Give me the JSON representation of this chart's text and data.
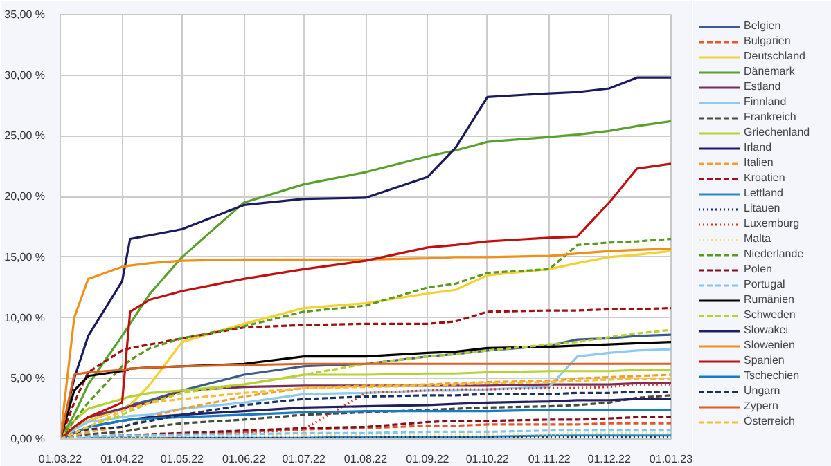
{
  "chart_data": {
    "type": "line",
    "x": [
      "2022-03-01",
      "2022-03-08",
      "2022-03-15",
      "2022-04-01",
      "2022-04-05",
      "2022-04-15",
      "2022-05-01",
      "2022-06-01",
      "2022-07-01",
      "2022-08-01",
      "2022-09-01",
      "2022-09-15",
      "2022-10-01",
      "2022-11-01",
      "2022-11-15",
      "2022-12-01",
      "2022-12-15",
      "2023-01-01"
    ],
    "xlim": [
      "2022-03-01",
      "2023-01-01"
    ],
    "xticks": [
      {
        "value": "2022-03-01",
        "label": "01.03.22"
      },
      {
        "value": "2022-04-01",
        "label": "01.04.22"
      },
      {
        "value": "2022-05-01",
        "label": "01.05.22"
      },
      {
        "value": "2022-06-01",
        "label": "01.06.22"
      },
      {
        "value": "2022-07-01",
        "label": "01.07.22"
      },
      {
        "value": "2022-08-01",
        "label": "01.08.22"
      },
      {
        "value": "2022-09-01",
        "label": "01.09.22"
      },
      {
        "value": "2022-10-01",
        "label": "01.10.22"
      },
      {
        "value": "2022-11-01",
        "label": "01.11.22"
      },
      {
        "value": "2022-12-01",
        "label": "01.12.22"
      },
      {
        "value": "2023-01-01",
        "label": "01.01.23"
      }
    ],
    "ylim": [
      0,
      35
    ],
    "yticks": [
      {
        "value": 0,
        "label": "0,00 %"
      },
      {
        "value": 5,
        "label": "5,00 %"
      },
      {
        "value": 10,
        "label": "10,00 %"
      },
      {
        "value": 15,
        "label": "15,00 %"
      },
      {
        "value": 20,
        "label": "20,00 %"
      },
      {
        "value": 25,
        "label": "25,00 %"
      },
      {
        "value": 30,
        "label": "30,00 %"
      },
      {
        "value": 35,
        "label": "35,00 %"
      }
    ],
    "grid": true,
    "legend": "right",
    "marker": "none",
    "series": [
      {
        "name": "Belgien",
        "color": "#3b5b8c",
        "line_style": "solid",
        "values": [
          0,
          0.8,
          1.5,
          2.5,
          2.8,
          3.2,
          4.0,
          5.3,
          6.0,
          6.2,
          6.8,
          7.0,
          7.3,
          7.7,
          8.2,
          8.3,
          8.5,
          8.6
        ]
      },
      {
        "name": "Bulgarien",
        "color": "#e8562a",
        "line_style": "dashed",
        "values": [
          0,
          0,
          0.1,
          0.2,
          0.2,
          0.3,
          0.4,
          0.6,
          0.8,
          0.9,
          1.1,
          1.1,
          1.2,
          1.2,
          1.2,
          1.3,
          1.3,
          1.3
        ]
      },
      {
        "name": "Deutschland",
        "color": "#f5d033",
        "line_style": "solid",
        "values": [
          0,
          0.8,
          1.5,
          2.5,
          2.8,
          4.5,
          8.0,
          9.5,
          10.8,
          11.2,
          12.0,
          12.3,
          13.5,
          14.0,
          14.5,
          15.0,
          15.2,
          15.5
        ]
      },
      {
        "name": "Dänemark",
        "color": "#5aa02c",
        "line_style": "solid",
        "values": [
          0,
          2.0,
          4.5,
          8.5,
          9.5,
          12.0,
          15.0,
          19.5,
          21.0,
          22.0,
          23.3,
          23.8,
          24.5,
          24.9,
          25.1,
          25.4,
          25.8,
          26.2
        ]
      },
      {
        "name": "Estland",
        "color": "#7b2d5a",
        "line_style": "solid",
        "values": [
          0,
          1.0,
          1.8,
          2.5,
          2.7,
          3.0,
          4.0,
          4.3,
          4.4,
          4.4,
          4.4,
          4.4,
          4.4,
          4.5,
          4.5,
          4.5,
          4.6,
          4.6
        ]
      },
      {
        "name": "Finnland",
        "color": "#8ec9ee",
        "line_style": "solid",
        "values": [
          0,
          0.8,
          1.4,
          1.8,
          1.9,
          2.0,
          2.5,
          3.0,
          3.7,
          3.8,
          4.0,
          4.0,
          4.1,
          4.3,
          6.8,
          7.1,
          7.3,
          7.4
        ]
      },
      {
        "name": "Frankreich",
        "color": "#4a4a3a",
        "line_style": "dashed",
        "values": [
          0,
          0.2,
          0.4,
          0.6,
          0.7,
          1.0,
          1.3,
          1.6,
          2.0,
          2.2,
          2.4,
          2.5,
          2.6,
          2.7,
          2.8,
          3.0,
          3.4,
          3.6
        ]
      },
      {
        "name": "Griechenland",
        "color": "#b5d334",
        "line_style": "solid",
        "values": [
          0,
          1.5,
          2.5,
          3.3,
          3.5,
          3.8,
          4.0,
          4.5,
          5.3,
          5.3,
          5.4,
          5.4,
          5.5,
          5.6,
          5.6,
          5.6,
          5.7,
          5.7
        ]
      },
      {
        "name": "Irland",
        "color": "#1a1a5e",
        "line_style": "solid",
        "values": [
          0,
          5.0,
          8.5,
          13.0,
          16.5,
          16.8,
          17.3,
          19.3,
          19.8,
          19.9,
          21.6,
          24.0,
          28.2,
          28.5,
          28.6,
          28.9,
          29.8,
          29.8
        ]
      },
      {
        "name": "Italien",
        "color": "#f0a030",
        "line_style": "dashed",
        "values": [
          0,
          0.3,
          0.6,
          1.0,
          1.2,
          1.8,
          2.5,
          3.5,
          4.2,
          4.4,
          4.5,
          4.6,
          4.7,
          4.8,
          5.0,
          5.1,
          5.2,
          5.3
        ]
      },
      {
        "name": "Kroatien",
        "color": "#a01010",
        "line_style": "dashed",
        "values": [
          0,
          3.0,
          5.5,
          7.3,
          7.5,
          7.8,
          8.3,
          9.2,
          9.4,
          9.5,
          9.5,
          9.7,
          10.5,
          10.6,
          10.6,
          10.7,
          10.7,
          10.8
        ]
      },
      {
        "name": "Lettland",
        "color": "#2a8ac0",
        "line_style": "solid",
        "values": [
          0,
          0,
          0.1,
          0.1,
          0.1,
          0.1,
          0.1,
          0.1,
          0.1,
          0.2,
          0.2,
          0.2,
          0.2,
          0.3,
          0.3,
          0.3,
          0.3,
          0.3
        ]
      },
      {
        "name": "Litauen",
        "color": "#1a2a6a",
        "line_style": "dotted",
        "values": [
          0,
          0,
          0.1,
          0.1,
          0.1,
          0.1,
          0.1,
          0.1,
          0.1,
          0.1,
          0.2,
          0.2,
          0.2,
          0.2,
          0.2,
          0.2,
          0.2,
          0.2
        ]
      },
      {
        "name": "Luxemburg",
        "color": "#e03020",
        "line_style": "dotted",
        "values": [
          0,
          0,
          0,
          0,
          0,
          0.1,
          0.3,
          0.5,
          0.8,
          3.8,
          4.0,
          4.1,
          4.1,
          4.2,
          4.2,
          4.3,
          4.5,
          4.5
        ]
      },
      {
        "name": "Malta",
        "color": "#f0e070",
        "line_style": "dotted",
        "values": [
          0,
          0.1,
          0.1,
          0.2,
          0.2,
          0.2,
          0.3,
          0.3,
          0.3,
          0.4,
          0.4,
          0.4,
          0.4,
          0.4,
          0.5,
          0.5,
          0.5,
          0.5
        ]
      },
      {
        "name": "Niederlande",
        "color": "#5a9a20",
        "line_style": "dashed",
        "values": [
          0,
          1.5,
          3.0,
          6.0,
          6.5,
          7.5,
          8.3,
          9.3,
          10.5,
          11.0,
          12.5,
          12.8,
          13.7,
          14.0,
          16.0,
          16.2,
          16.3,
          16.5
        ]
      },
      {
        "name": "Polen",
        "color": "#801020",
        "line_style": "dashed",
        "values": [
          0,
          0.1,
          0.2,
          0.3,
          0.3,
          0.4,
          0.5,
          0.7,
          0.9,
          1.0,
          1.4,
          1.5,
          1.5,
          1.6,
          1.6,
          1.7,
          1.8,
          1.8
        ]
      },
      {
        "name": "Portugal",
        "color": "#80c8f0",
        "line_style": "dashed",
        "values": [
          0,
          0.1,
          0.2,
          0.3,
          0.3,
          0.3,
          0.4,
          0.4,
          0.5,
          0.5,
          0.6,
          0.6,
          0.6,
          0.7,
          0.7,
          0.7,
          0.7,
          0.7
        ]
      },
      {
        "name": "Rumänien",
        "color": "#000000",
        "line_style": "solid",
        "values": [
          0,
          4.0,
          5.2,
          5.6,
          5.8,
          5.9,
          6.0,
          6.2,
          6.8,
          6.8,
          7.1,
          7.2,
          7.5,
          7.6,
          7.7,
          7.8,
          7.9,
          8.0
        ]
      },
      {
        "name": "Schweden",
        "color": "#b8d030",
        "line_style": "dashed",
        "values": [
          0,
          0.5,
          1.0,
          2.0,
          2.3,
          3.0,
          3.8,
          4.5,
          5.3,
          6.2,
          6.8,
          7.0,
          7.3,
          7.8,
          8.0,
          8.4,
          8.7,
          9.0
        ]
      },
      {
        "name": "Slowakei",
        "color": "#202060",
        "line_style": "solid",
        "values": [
          0,
          0.5,
          1.0,
          1.5,
          1.6,
          1.8,
          2.0,
          2.3,
          2.6,
          2.7,
          2.8,
          2.9,
          3.0,
          3.1,
          3.2,
          3.2,
          3.3,
          3.3
        ]
      },
      {
        "name": "Slowenien",
        "color": "#f0901a",
        "line_style": "solid",
        "values": [
          0,
          10.0,
          13.2,
          14.2,
          14.3,
          14.5,
          14.7,
          14.8,
          14.8,
          14.8,
          14.9,
          15.0,
          15.0,
          15.1,
          15.3,
          15.5,
          15.6,
          15.7
        ]
      },
      {
        "name": "Spanien",
        "color": "#c01010",
        "line_style": "solid",
        "values": [
          0,
          1.0,
          1.8,
          3.0,
          10.5,
          11.5,
          12.2,
          13.2,
          14.0,
          14.7,
          15.8,
          16.0,
          16.3,
          16.6,
          16.7,
          19.5,
          22.3,
          22.7
        ]
      },
      {
        "name": "Tschechien",
        "color": "#1a7ac0",
        "line_style": "solid",
        "values": [
          0,
          0.5,
          1.0,
          1.5,
          1.6,
          1.7,
          1.8,
          2.0,
          2.2,
          2.3,
          2.3,
          2.3,
          2.3,
          2.4,
          2.4,
          2.4,
          2.4,
          2.4
        ]
      },
      {
        "name": "Ungarn",
        "color": "#1a3060",
        "line_style": "dashed",
        "values": [
          0,
          0.5,
          0.8,
          1.0,
          1.2,
          1.5,
          2.0,
          2.8,
          3.3,
          3.5,
          3.6,
          3.6,
          3.7,
          3.7,
          3.8,
          3.8,
          3.9,
          3.9
        ]
      },
      {
        "name": "Zypern",
        "color": "#e06020",
        "line_style": "solid",
        "values": [
          0,
          5.3,
          5.5,
          5.7,
          5.8,
          5.9,
          6.0,
          6.1,
          6.2,
          6.2,
          6.2,
          6.2,
          6.2,
          6.2,
          6.2,
          6.2,
          6.2,
          6.2
        ]
      },
      {
        "name": "Österreich",
        "color": "#f5c030",
        "line_style": "dashed",
        "values": [
          0,
          0.5,
          1.0,
          2.3,
          2.5,
          3.0,
          3.3,
          3.8,
          4.2,
          4.3,
          4.4,
          4.5,
          4.6,
          4.7,
          4.8,
          4.9,
          5.0,
          5.0
        ]
      }
    ]
  }
}
